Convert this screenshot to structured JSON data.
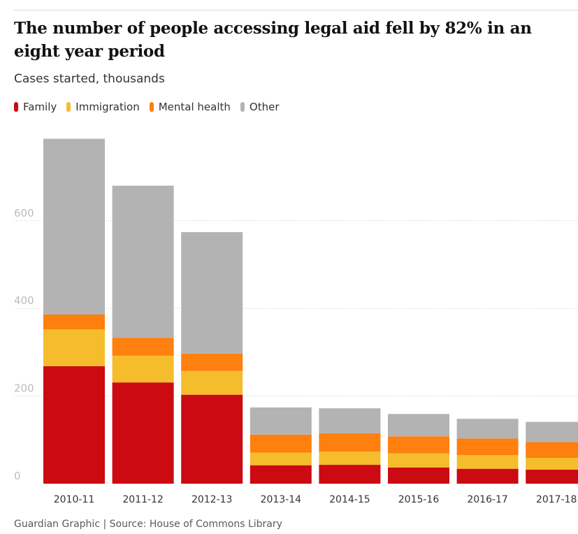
{
  "header": {
    "title": "The number of people accessing legal aid fell by 82% in an eight year period",
    "subtitle": "Cases started, thousands"
  },
  "footer": {
    "source": "Guardian Graphic | Source: House of Commons Library"
  },
  "colors": {
    "Family": "#cc0a11",
    "Immigration": "#f5bd2c",
    "Mental health": "#ff7f0f",
    "Other": "#b3b3b3",
    "grid": "#cccccc",
    "tick": "#bdbdbd"
  },
  "chart_data": {
    "type": "bar",
    "stacked": true,
    "categories": [
      "2010-11",
      "2011-12",
      "2012-13",
      "2013-14",
      "2014-15",
      "2015-16",
      "2016-17",
      "2017-18"
    ],
    "series": [
      {
        "name": "Family",
        "values": [
          268,
          231,
          203,
          42,
          43,
          37,
          34,
          32
        ]
      },
      {
        "name": "Immigration",
        "values": [
          84,
          61,
          54,
          29,
          30,
          32,
          31,
          27
        ]
      },
      {
        "name": "Mental health",
        "values": [
          34,
          41,
          40,
          41,
          42,
          39,
          38,
          36
        ]
      },
      {
        "name": "Other",
        "values": [
          401,
          347,
          277,
          62,
          57,
          51,
          45,
          46
        ]
      }
    ],
    "y_ticks": [
      0,
      200,
      400,
      600
    ],
    "ylim": [
      0,
      800
    ],
    "grid": true,
    "legend_position": "top-left"
  }
}
